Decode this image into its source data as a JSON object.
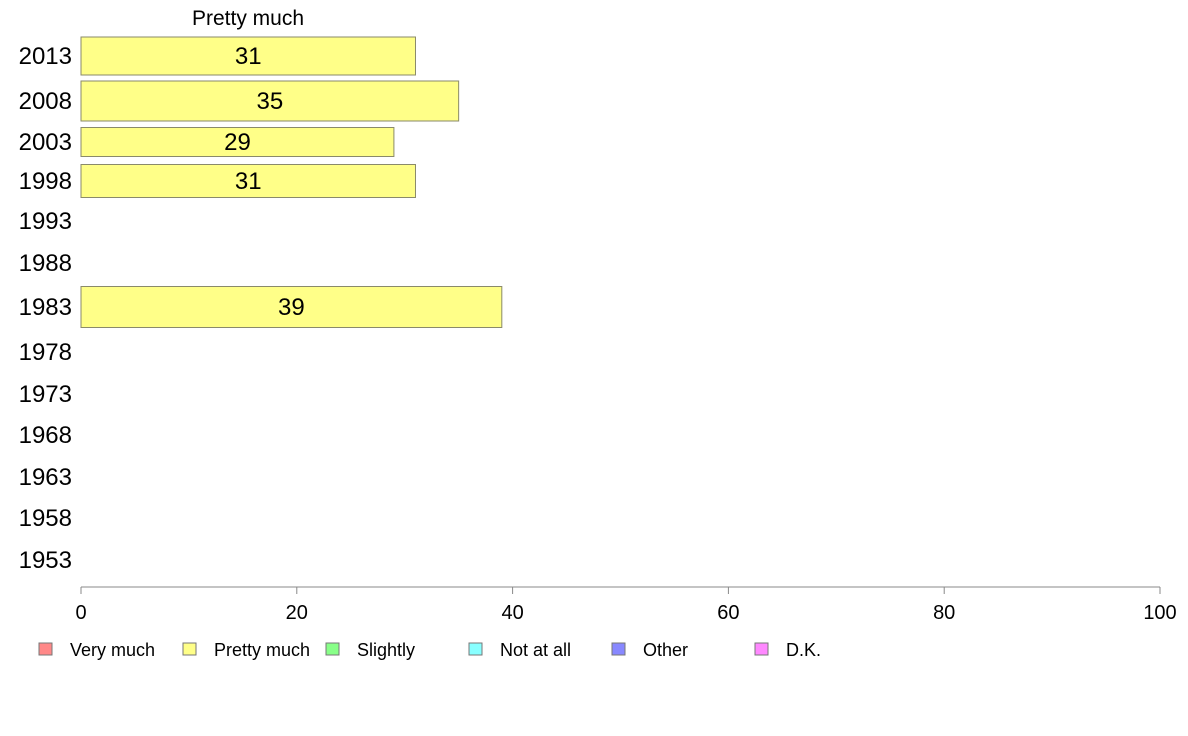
{
  "chart_data": {
    "type": "bar",
    "orientation": "horizontal",
    "title": "Pretty much",
    "xlabel": "",
    "ylabel": "",
    "xlim": [
      0,
      100
    ],
    "xticks": [
      0,
      20,
      40,
      60,
      80,
      100
    ],
    "grid": false,
    "categories": [
      "2013",
      "2008",
      "2003",
      "1998",
      "1993",
      "1988",
      "1983",
      "1978",
      "1973",
      "1968",
      "1963",
      "1958",
      "1953"
    ],
    "series": [
      {
        "name": "Pretty much",
        "color": "#ffff88",
        "values": [
          31,
          35,
          29,
          31,
          null,
          null,
          39,
          null,
          null,
          null,
          null,
          null,
          null
        ],
        "labels": [
          "31",
          "35",
          "29",
          "31",
          "",
          "",
          "39",
          "",
          "",
          "",
          "",
          "",
          ""
        ]
      }
    ],
    "legend": {
      "placement": "bottom-left",
      "items": [
        {
          "label": "Very much",
          "color": "#ff8888"
        },
        {
          "label": "Pretty much",
          "color": "#ffff88"
        },
        {
          "label": "Slightly",
          "color": "#88ff88"
        },
        {
          "label": "Not at all",
          "color": "#88ffff"
        },
        {
          "label": "Other",
          "color": "#8888ff"
        },
        {
          "label": "D.K.",
          "color": "#ff88ff"
        }
      ]
    }
  }
}
